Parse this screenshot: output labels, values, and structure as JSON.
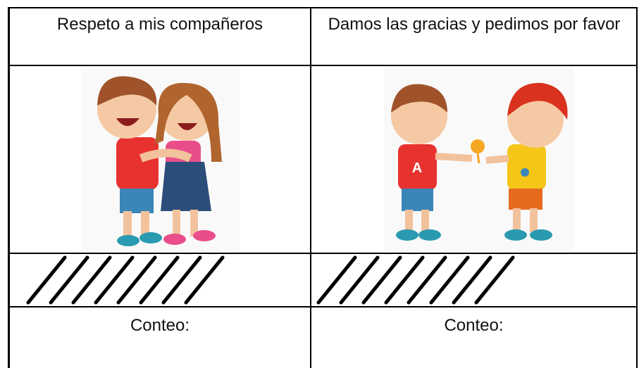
{
  "table": {
    "header": [
      "Respeto a mis compañeros",
      "Damos las gracias y pedimos por favor"
    ],
    "tally_counts": [
      8,
      8
    ],
    "footer": [
      "Conteo:",
      "Conteo:"
    ]
  }
}
